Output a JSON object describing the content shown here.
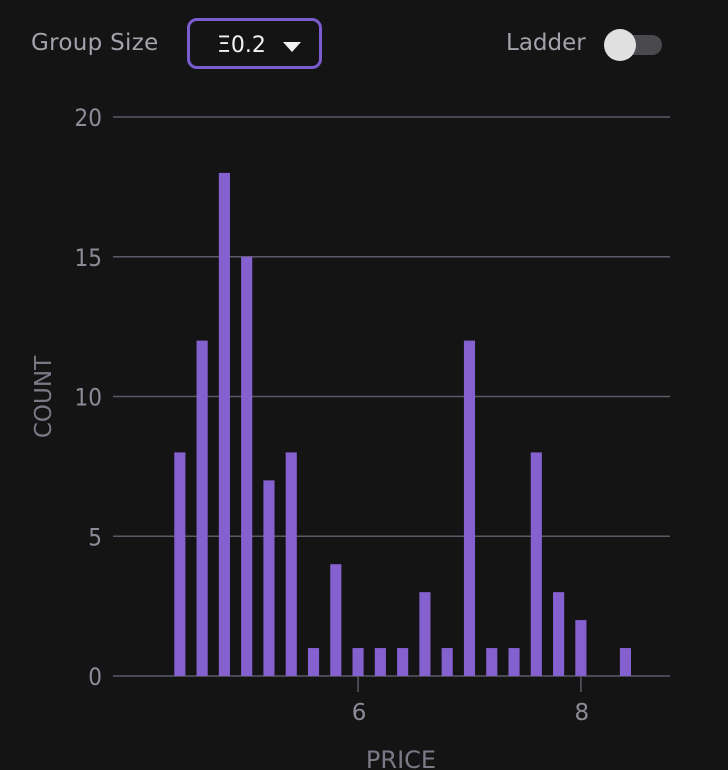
{
  "controls": {
    "group_size_label": "Group Size",
    "group_size_value": "Ξ0.2",
    "ladder_label": "Ladder",
    "ladder_on": false
  },
  "colors": {
    "bar": "#8560cf",
    "accent": "#7a5cd0",
    "grid": "#5a5a66",
    "tick_text": "#8c8c98",
    "axis_title": "#7a7a86"
  },
  "chart_data": {
    "type": "bar",
    "title": "",
    "xlabel": "PRICE",
    "ylabel": "COUNT",
    "ylim": [
      0,
      20
    ],
    "xlim": [
      3.8,
      8.8
    ],
    "y_ticks": [
      0,
      5,
      10,
      15,
      20
    ],
    "x_ticks": [
      6,
      8
    ],
    "grid": true,
    "bar_width": 0.1,
    "x": [
      4.4,
      4.6,
      4.8,
      5.0,
      5.2,
      5.4,
      5.6,
      5.8,
      6.0,
      6.2,
      6.4,
      6.6,
      6.8,
      7.0,
      7.2,
      7.4,
      7.6,
      7.8,
      8.0,
      8.4
    ],
    "values": [
      8,
      12,
      18,
      15,
      7,
      8,
      1,
      4,
      1,
      1,
      1,
      3,
      1,
      12,
      1,
      1,
      8,
      3,
      2,
      1
    ]
  }
}
